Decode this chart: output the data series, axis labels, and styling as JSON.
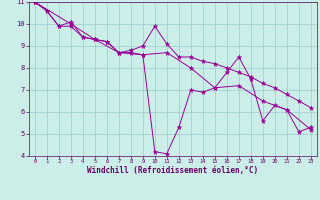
{
  "xlabel": "Windchill (Refroidissement éolien,°C)",
  "ylabel": "",
  "bg_color": "#cceee8",
  "line_color": "#990099",
  "grid_color": "#99cccc",
  "series1_x": [
    0,
    1,
    2,
    3,
    4,
    5,
    6,
    7,
    8,
    9,
    10,
    11,
    12,
    13,
    14,
    15,
    16,
    17,
    18,
    19,
    20,
    21,
    22,
    23
  ],
  "series1_y": [
    11.0,
    10.6,
    9.9,
    10.1,
    9.4,
    9.3,
    9.2,
    8.7,
    8.7,
    8.6,
    4.2,
    4.1,
    5.3,
    7.0,
    6.9,
    7.1,
    7.8,
    8.5,
    7.5,
    5.6,
    6.3,
    6.1,
    5.1,
    5.3
  ],
  "series2_x": [
    0,
    1,
    2,
    3,
    4,
    5,
    6,
    7,
    8,
    9,
    10,
    11,
    12,
    13,
    14,
    15,
    16,
    17,
    18,
    19,
    20,
    21,
    22,
    23
  ],
  "series2_y": [
    11.0,
    10.6,
    9.9,
    9.9,
    9.4,
    9.3,
    9.2,
    8.7,
    8.8,
    9.0,
    9.9,
    9.1,
    8.5,
    8.5,
    8.3,
    8.2,
    8.0,
    7.8,
    7.6,
    7.3,
    7.1,
    6.8,
    6.5,
    6.2
  ],
  "series3_x": [
    0,
    3,
    5,
    7,
    9,
    11,
    13,
    15,
    17,
    19,
    21,
    23
  ],
  "series3_y": [
    11.0,
    10.0,
    9.3,
    8.7,
    8.6,
    8.7,
    8.0,
    7.1,
    7.2,
    6.5,
    6.1,
    5.2
  ],
  "xlim": [
    -0.5,
    23.5
  ],
  "ylim": [
    4,
    11
  ],
  "xticks": [
    0,
    1,
    2,
    3,
    4,
    5,
    6,
    7,
    8,
    9,
    10,
    11,
    12,
    13,
    14,
    15,
    16,
    17,
    18,
    19,
    20,
    21,
    22,
    23
  ],
  "yticks": [
    4,
    5,
    6,
    7,
    8,
    9,
    10,
    11
  ],
  "tick_color": "#660066",
  "label_color": "#660066"
}
